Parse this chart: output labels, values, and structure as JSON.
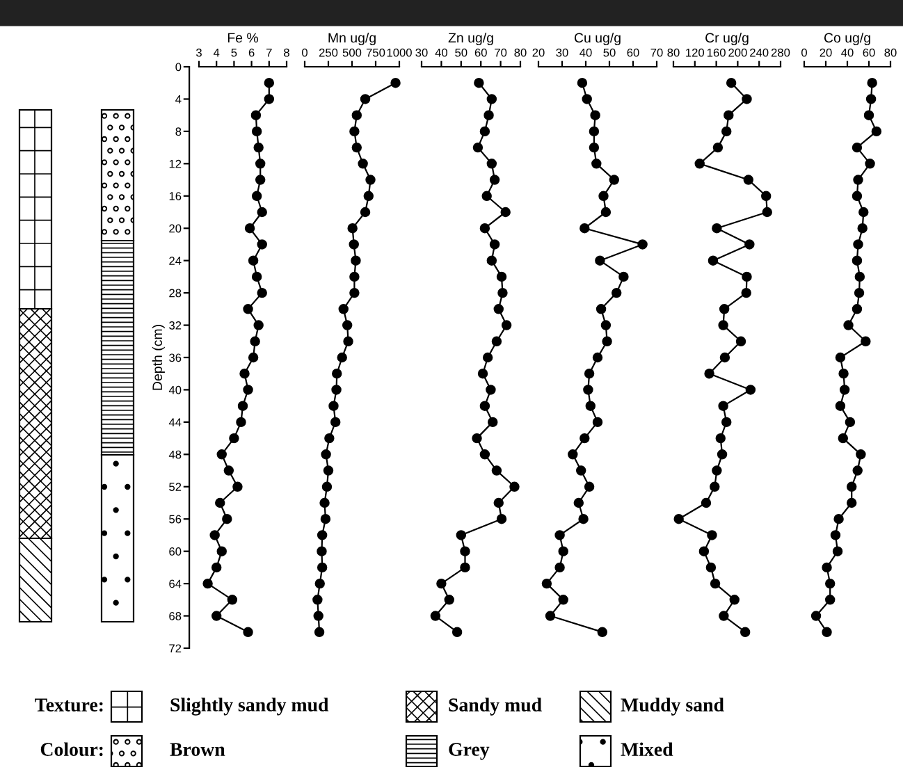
{
  "chart_data": [
    {
      "type": "line",
      "xlabel": "Fe %",
      "ylabel": "Depth (cm)",
      "xlim": [
        3,
        8
      ],
      "xticks": [
        3,
        4,
        5,
        6,
        7,
        8
      ],
      "ylim": [
        72,
        0
      ],
      "yticks": [
        0,
        4,
        8,
        12,
        16,
        20,
        24,
        28,
        32,
        36,
        40,
        44,
        48,
        52,
        56,
        60,
        64,
        68,
        72
      ],
      "marker": "circle",
      "line_style": "solid",
      "grid": false,
      "legend": false,
      "series": [
        {
          "color": "#000000",
          "x": [
            7.0,
            7.0,
            6.25,
            6.3,
            6.4,
            6.5,
            6.5,
            6.3,
            6.6,
            5.9,
            6.6,
            6.1,
            6.3,
            6.6,
            5.8,
            6.4,
            6.2,
            6.1,
            5.6,
            5.8,
            5.5,
            5.4,
            5.0,
            4.3,
            4.7,
            5.2,
            4.2,
            4.6,
            3.9,
            4.3,
            4.0,
            3.5,
            4.9,
            4.0,
            5.8
          ],
          "values": [
            2,
            4,
            6,
            8,
            10,
            12,
            14,
            16,
            18,
            20,
            22,
            24,
            26,
            28,
            30,
            32,
            34,
            36,
            38,
            40,
            42,
            44,
            46,
            48,
            50,
            52,
            54,
            56,
            58,
            60,
            62,
            64,
            66,
            68,
            70
          ]
        }
      ]
    },
    {
      "type": "line",
      "xlabel": "Mn ug/g",
      "xlim": [
        0,
        1000
      ],
      "xticks": [
        0,
        250,
        500,
        750,
        1000
      ],
      "ylim": [
        72,
        0
      ],
      "tick_labels": "x",
      "marker": "circle",
      "line_style": "solid",
      "grid": false,
      "legend": false,
      "series": [
        {
          "color": "#000000",
          "x": [
            960,
            640,
            550,
            525,
            550,
            615,
            695,
            675,
            640,
            505,
            520,
            540,
            525,
            525,
            410,
            450,
            460,
            395,
            340,
            335,
            305,
            325,
            260,
            225,
            250,
            235,
            210,
            220,
            185,
            180,
            185,
            160,
            135,
            145,
            155
          ],
          "values": [
            2,
            4,
            6,
            8,
            10,
            12,
            14,
            16,
            18,
            20,
            22,
            24,
            26,
            28,
            30,
            32,
            34,
            36,
            38,
            40,
            42,
            44,
            46,
            48,
            50,
            52,
            54,
            56,
            58,
            60,
            62,
            64,
            66,
            68,
            70
          ]
        }
      ]
    },
    {
      "type": "line",
      "xlabel": "Zn ug/g",
      "xlim": [
        30,
        80
      ],
      "xticks": [
        30,
        40,
        50,
        60,
        70,
        80
      ],
      "ylim": [
        72,
        0
      ],
      "tick_labels": "x",
      "marker": "circle",
      "line_style": "solid",
      "grid": false,
      "legend": false,
      "series": [
        {
          "color": "#000000",
          "x": [
            59,
            65.5,
            64,
            62,
            58.5,
            65.5,
            67,
            63,
            72.5,
            62,
            67,
            65.5,
            70.5,
            71,
            69,
            73,
            68,
            63.5,
            61,
            65,
            62,
            66,
            58,
            62,
            68,
            77,
            69,
            70.5,
            50,
            52,
            52,
            40,
            44,
            37,
            48
          ],
          "values": [
            2,
            4,
            6,
            8,
            10,
            12,
            14,
            16,
            18,
            20,
            22,
            24,
            26,
            28,
            30,
            32,
            34,
            36,
            38,
            40,
            42,
            44,
            46,
            48,
            50,
            52,
            54,
            56,
            58,
            60,
            62,
            64,
            66,
            68,
            70
          ]
        }
      ]
    },
    {
      "type": "line",
      "xlabel": "Cu ug/g",
      "xlim": [
        20,
        70
      ],
      "xticks": [
        20,
        30,
        40,
        50,
        60,
        70
      ],
      "ylim": [
        72,
        0
      ],
      "tick_labels": "x",
      "marker": "circle",
      "line_style": "solid",
      "grid": false,
      "legend": false,
      "series": [
        {
          "color": "#000000",
          "x": [
            38.5,
            40.5,
            44,
            43.5,
            43.5,
            44.5,
            52,
            47.5,
            48.5,
            39.5,
            64,
            46,
            56,
            53,
            46.5,
            48.5,
            49,
            45,
            41.5,
            41,
            42,
            45,
            39.5,
            34.5,
            38,
            41.5,
            37,
            39,
            29,
            30.5,
            29,
            23.5,
            30.5,
            25,
            47
          ],
          "values": [
            2,
            4,
            6,
            8,
            10,
            12,
            14,
            16,
            18,
            20,
            22,
            24,
            26,
            28,
            30,
            32,
            34,
            36,
            38,
            40,
            42,
            44,
            46,
            48,
            50,
            52,
            54,
            56,
            58,
            60,
            62,
            64,
            66,
            68,
            70
          ]
        }
      ]
    },
    {
      "type": "line",
      "xlabel": "Cr ug/g",
      "xlim": [
        80,
        280
      ],
      "xticks": [
        80,
        120,
        160,
        200,
        240,
        280
      ],
      "ylim": [
        72,
        0
      ],
      "tick_labels": "x",
      "marker": "circle",
      "line_style": "solid",
      "grid": false,
      "legend": false,
      "series": [
        {
          "color": "#000000",
          "x": [
            188,
            217,
            183,
            179,
            163,
            129,
            220,
            253,
            255,
            161,
            222,
            154,
            217,
            216,
            175,
            173,
            206,
            176,
            147,
            224,
            173,
            179,
            168,
            171,
            161,
            157,
            141,
            90,
            152,
            137,
            150,
            158,
            194,
            174,
            214
          ],
          "values": [
            2,
            4,
            6,
            8,
            10,
            12,
            14,
            16,
            18,
            20,
            22,
            24,
            26,
            28,
            30,
            32,
            34,
            36,
            38,
            40,
            42,
            44,
            46,
            48,
            50,
            52,
            54,
            56,
            58,
            60,
            62,
            64,
            66,
            68,
            70
          ]
        }
      ]
    },
    {
      "type": "line",
      "xlabel": "Co ug/g",
      "xlim": [
        0,
        80
      ],
      "xticks": [
        0,
        20,
        40,
        60,
        80
      ],
      "ylim": [
        72,
        0
      ],
      "tick_labels": "x",
      "marker": "circle",
      "line_style": "solid",
      "grid": false,
      "legend": false,
      "series": [
        {
          "color": "#000000",
          "x": [
            63,
            62,
            60,
            67,
            49,
            61,
            50,
            49,
            55,
            54,
            50,
            49,
            51.5,
            51,
            49,
            41,
            57,
            33.5,
            36.5,
            37.5,
            33.5,
            42.5,
            36,
            52.5,
            49.5,
            44,
            44,
            32,
            29,
            31,
            21,
            24,
            24,
            11,
            21
          ],
          "values": [
            2,
            4,
            6,
            8,
            10,
            12,
            14,
            16,
            18,
            20,
            22,
            24,
            26,
            28,
            30,
            32,
            34,
            36,
            38,
            40,
            42,
            44,
            46,
            48,
            50,
            52,
            54,
            56,
            58,
            60,
            62,
            64,
            66,
            68,
            70
          ]
        }
      ]
    },
    {
      "type": "other",
      "annotations": [
        "Texture:",
        "Slightly sandy mud",
        "Sandy mud",
        "Muddy sand",
        "Colour:",
        "Brown",
        "Grey",
        "Mixed"
      ]
    }
  ]
}
